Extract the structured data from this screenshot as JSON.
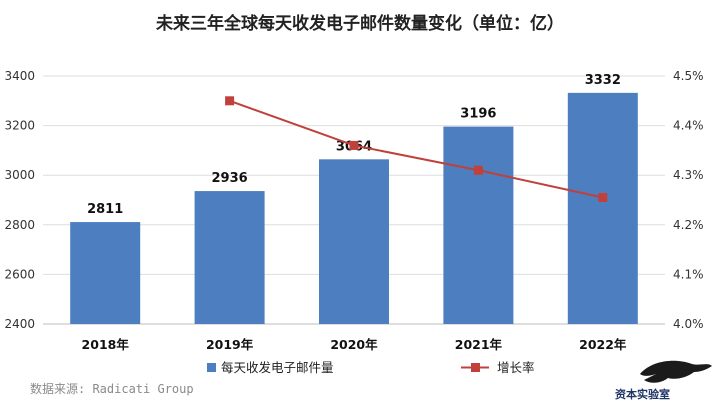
{
  "chart_data": {
    "type": "bar+line",
    "title": "未来三年全球每天收发电子邮件数量变化（单位：亿）",
    "categories": [
      "2018年",
      "2019年",
      "2020年",
      "2021年",
      "2022年"
    ],
    "series": [
      {
        "name": "每天收发电子邮件量",
        "type": "bar",
        "axis": "left",
        "color": "#4d7ebf",
        "values": [
          2811,
          2936,
          3064,
          3196,
          3332
        ],
        "labels": [
          "2811",
          "2936",
          "3064",
          "3196",
          "3332"
        ]
      },
      {
        "name": "增长率",
        "type": "line",
        "axis": "right",
        "color": "#c0413b",
        "values": [
          null,
          4.45,
          4.36,
          4.31,
          4.255
        ]
      }
    ],
    "y_left": {
      "min": 2400,
      "max": 3400,
      "step": 200,
      "ticks": [
        "2400",
        "2600",
        "2800",
        "3000",
        "3200",
        "3400"
      ]
    },
    "y_right": {
      "min": 4.0,
      "max": 4.5,
      "step": 0.1,
      "ticks": [
        "4.0%",
        "4.1%",
        "4.2%",
        "4.3%",
        "4.4%",
        "4.5%"
      ]
    },
    "grid": true,
    "legend_position": "bottom"
  },
  "source_text": "数据来源: Radicati Group",
  "logo_text": "资本实验室"
}
